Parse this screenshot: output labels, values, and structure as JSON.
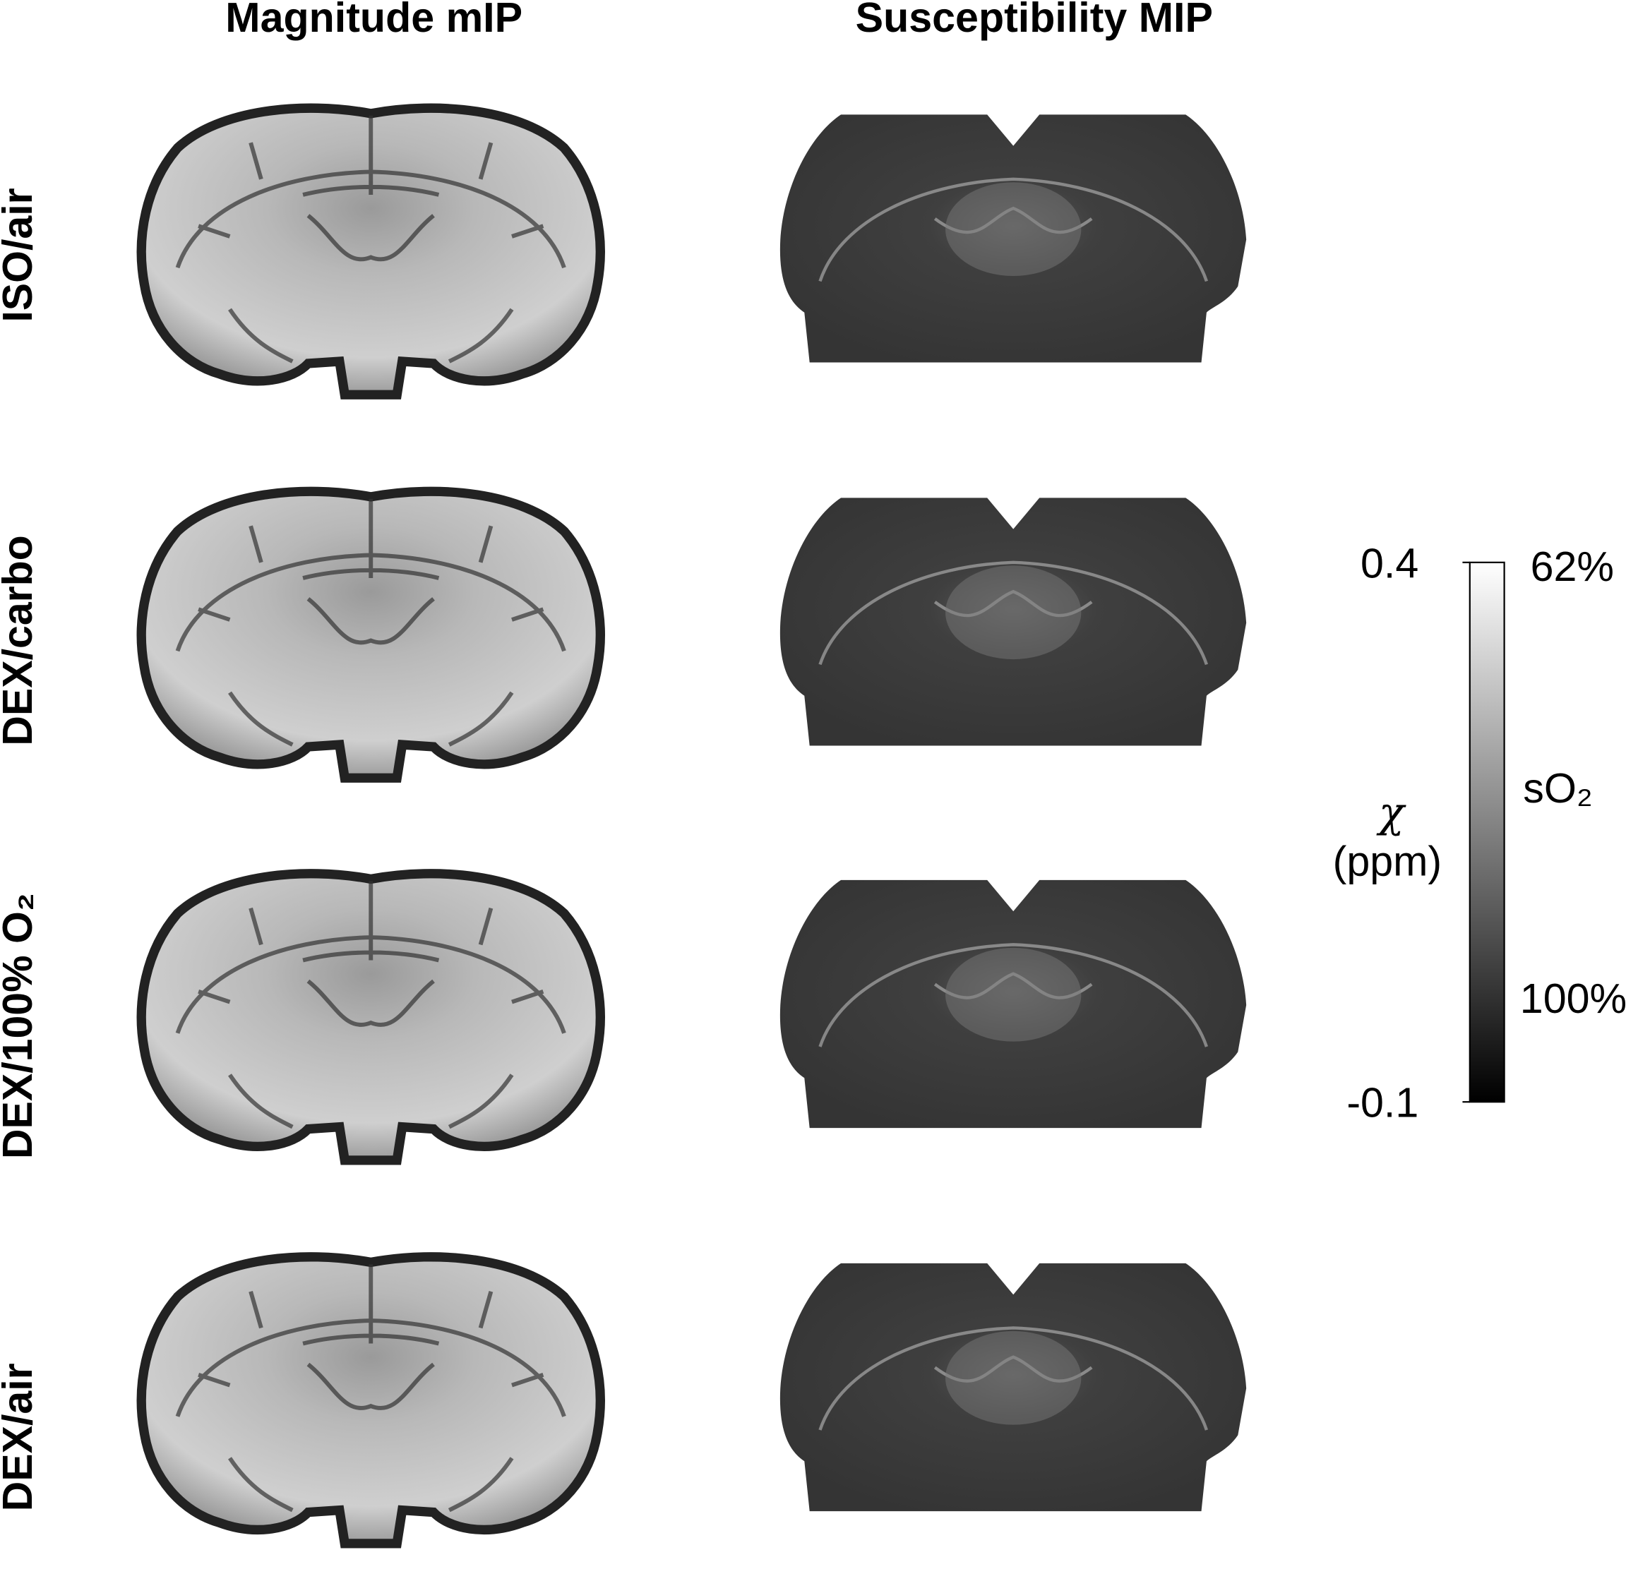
{
  "column_titles": [
    "Magnitude mIP",
    "Susceptibility MIP"
  ],
  "row_labels": [
    "ISO/air",
    "DEX/carbo",
    "DEX/100% O₂",
    "DEX/air"
  ],
  "colorbar": {
    "label_symbol": "χ",
    "label_unit": "(ppm)",
    "lim": [
      -0.1,
      0.4
    ],
    "ticks": [
      -0.1,
      0.4
    ],
    "secondary_labels": [
      "62%",
      "sO₂",
      "100%"
    ]
  }
}
